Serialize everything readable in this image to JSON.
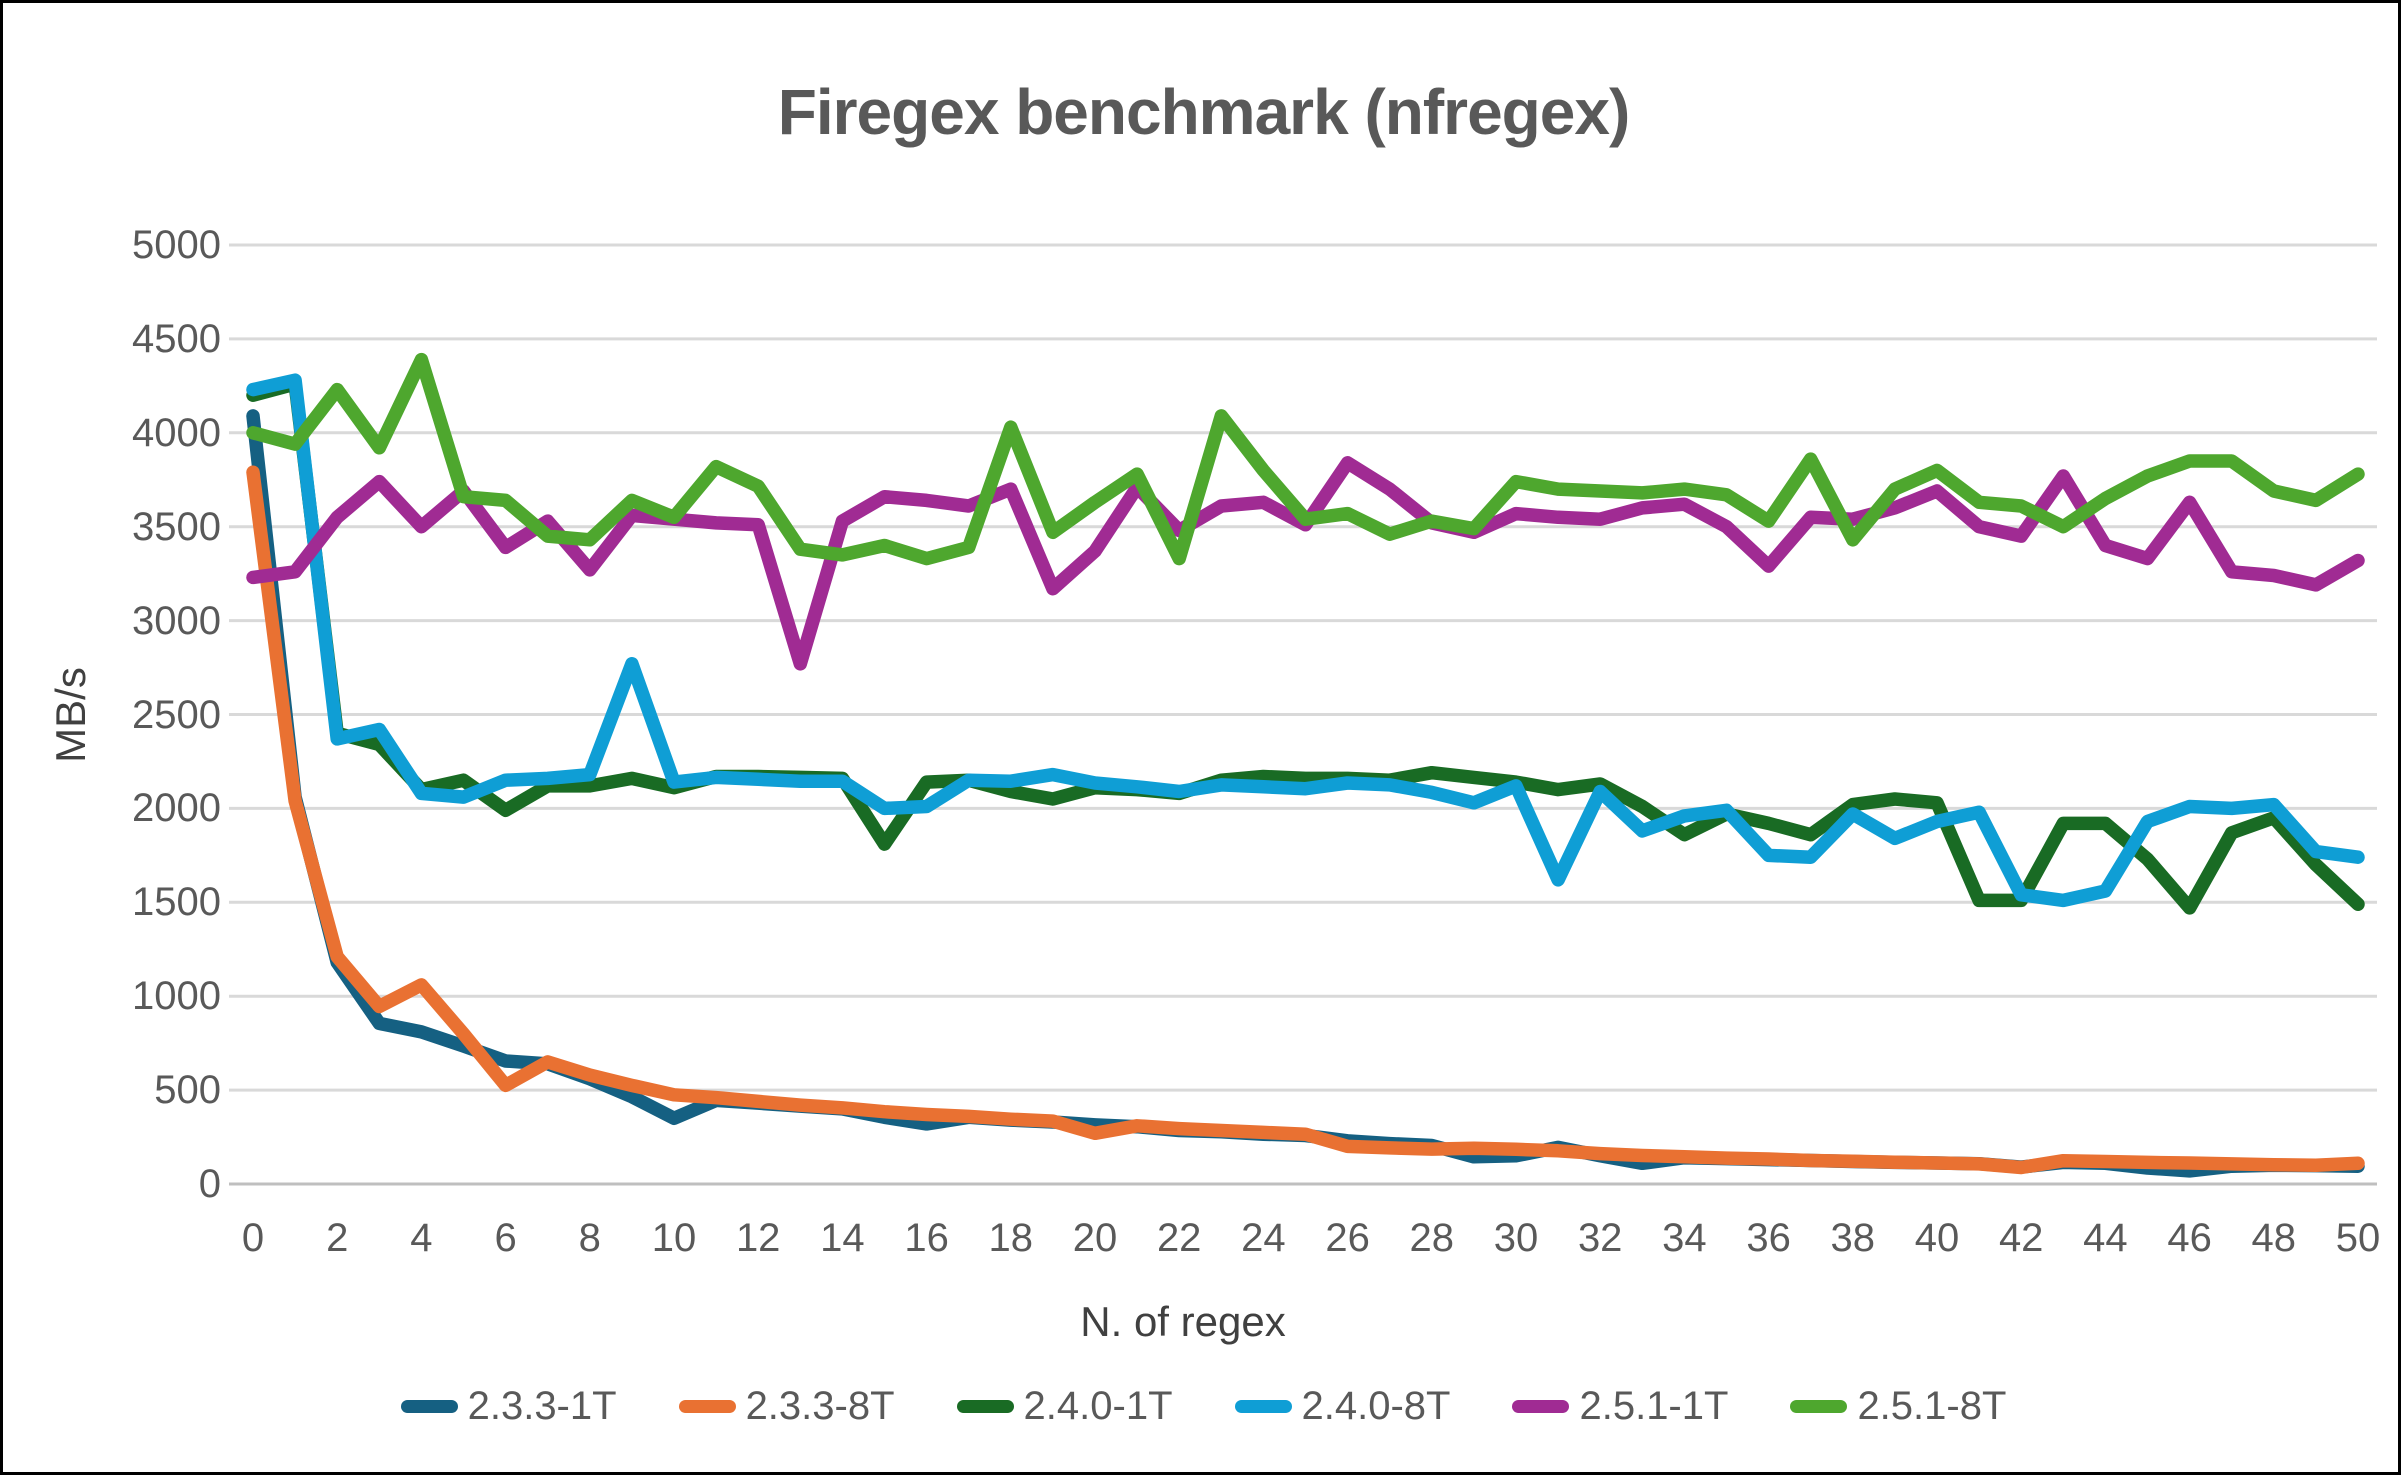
{
  "chart_data": {
    "type": "line",
    "title": "Firegex benchmark (nfregex)",
    "xlabel": "N. of regex",
    "ylabel": "MB/s",
    "xlim": [
      0,
      50
    ],
    "ylim": [
      0,
      5000
    ],
    "x_tick_step": 2,
    "grid": "horizontal",
    "legend_position": "bottom",
    "gridline_color": "#D9D9D9",
    "baseline_color": "#BFBFBF",
    "y_ticks": [
      0,
      500,
      1000,
      1500,
      2000,
      2500,
      3000,
      3500,
      4000,
      4500,
      5000
    ],
    "x_ticks": [
      0,
      2,
      4,
      6,
      8,
      10,
      12,
      14,
      16,
      18,
      20,
      22,
      24,
      26,
      28,
      30,
      32,
      34,
      36,
      38,
      40,
      42,
      44,
      46,
      48,
      50
    ],
    "x": [
      0,
      1,
      2,
      3,
      4,
      5,
      6,
      7,
      8,
      9,
      10,
      11,
      12,
      13,
      14,
      15,
      16,
      17,
      18,
      19,
      20,
      21,
      22,
      23,
      24,
      25,
      26,
      27,
      28,
      29,
      30,
      31,
      32,
      33,
      34,
      35,
      36,
      37,
      38,
      39,
      40,
      41,
      42,
      43,
      44,
      45,
      46,
      47,
      48,
      49,
      50
    ],
    "series": [
      {
        "name": "2.3.3-1T",
        "color": "#156082",
        "values": [
          4090,
          2060,
          1180,
          855,
          810,
          735,
          655,
          640,
          560,
          465,
          350,
          445,
          430,
          415,
          400,
          355,
          320,
          355,
          340,
          330,
          315,
          305,
          285,
          278,
          265,
          258,
          230,
          215,
          205,
          145,
          150,
          195,
          150,
          110,
          140,
          135,
          130,
          125,
          120,
          115,
          112,
          108,
          90,
          115,
          110,
          85,
          70,
          95,
          100,
          98,
          95
        ]
      },
      {
        "name": "2.3.3-8T",
        "color": "#E97132",
        "values": [
          3790,
          2040,
          1210,
          945,
          1060,
          800,
          525,
          650,
          580,
          525,
          475,
          460,
          440,
          420,
          405,
          385,
          370,
          360,
          345,
          335,
          270,
          310,
          295,
          285,
          275,
          265,
          200,
          192,
          186,
          190,
          185,
          177,
          162,
          152,
          145,
          138,
          133,
          125,
          121,
          116,
          112,
          107,
          88,
          124,
          120,
          115,
          112,
          107,
          103,
          100,
          110
        ]
      },
      {
        "name": "2.4.0-1T",
        "color": "#196B24",
        "values": [
          4200,
          4260,
          2400,
          2340,
          2100,
          2150,
          1990,
          2120,
          2120,
          2160,
          2110,
          2170,
          2170,
          2165,
          2160,
          1810,
          2140,
          2150,
          2090,
          2050,
          2110,
          2100,
          2080,
          2150,
          2170,
          2160,
          2160,
          2150,
          2190,
          2165,
          2140,
          2100,
          2130,
          2010,
          1860,
          1970,
          1920,
          1860,
          2020,
          2050,
          2030,
          1510,
          1510,
          1920,
          1920,
          1730,
          1470,
          1870,
          1950,
          1700,
          1490
        ]
      },
      {
        "name": "2.4.0-8T",
        "color": "#0F9ED5",
        "values": [
          4230,
          4280,
          2370,
          2420,
          2080,
          2060,
          2150,
          2160,
          2180,
          2770,
          2140,
          2165,
          2155,
          2145,
          2145,
          2000,
          2010,
          2150,
          2145,
          2180,
          2135,
          2115,
          2090,
          2125,
          2115,
          2105,
          2135,
          2125,
          2085,
          2030,
          2120,
          1620,
          2090,
          1880,
          1960,
          1990,
          1750,
          1740,
          1970,
          1840,
          1930,
          1980,
          1540,
          1510,
          1560,
          1930,
          2010,
          2000,
          2020,
          1770,
          1740
        ]
      },
      {
        "name": "2.5.1-1T",
        "color": "#A02B93",
        "values": [
          3230,
          3260,
          3550,
          3740,
          3500,
          3690,
          3390,
          3530,
          3270,
          3560,
          3540,
          3520,
          3510,
          2770,
          3530,
          3660,
          3640,
          3610,
          3700,
          3170,
          3370,
          3710,
          3480,
          3610,
          3630,
          3510,
          3840,
          3700,
          3520,
          3470,
          3570,
          3550,
          3540,
          3600,
          3620,
          3500,
          3290,
          3550,
          3540,
          3600,
          3690,
          3500,
          3450,
          3770,
          3400,
          3330,
          3630,
          3260,
          3240,
          3190,
          3320
        ]
      },
      {
        "name": "2.5.1-8T",
        "color": "#4EA72E",
        "values": [
          4000,
          3940,
          4230,
          3920,
          4390,
          3660,
          3640,
          3450,
          3430,
          3640,
          3550,
          3820,
          3715,
          3380,
          3350,
          3400,
          3330,
          3390,
          4030,
          3470,
          3630,
          3780,
          3330,
          4090,
          3800,
          3540,
          3570,
          3460,
          3530,
          3490,
          3740,
          3700,
          3690,
          3680,
          3700,
          3670,
          3530,
          3860,
          3430,
          3700,
          3800,
          3630,
          3610,
          3500,
          3650,
          3770,
          3850,
          3850,
          3690,
          3640,
          3780
        ]
      }
    ]
  }
}
